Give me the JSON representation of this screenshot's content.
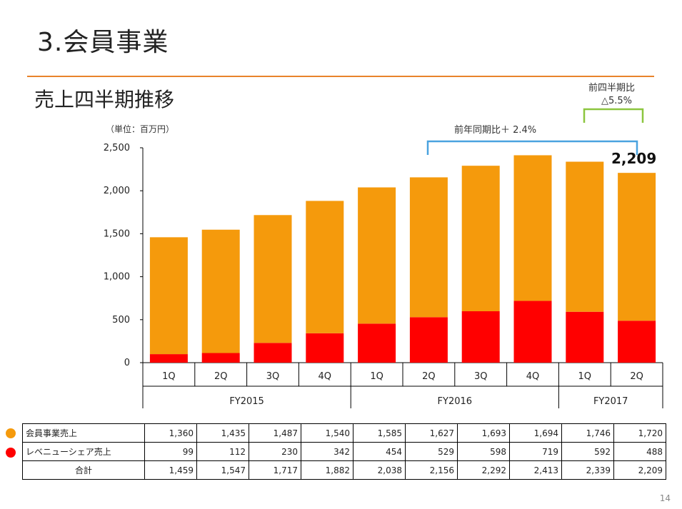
{
  "title": "3.会員事業",
  "subtitle": "売上四半期推移",
  "unit": "（単位：百万円）",
  "notes": {
    "yoy": "前年同期比＋ 2.4%",
    "qoq_line1": "前四半期比",
    "qoq_line2": "△5.5%"
  },
  "total_label": "2,209",
  "page_number": "14",
  "colors": {
    "member": "#f59a0c",
    "revenue_share": "#ff0000",
    "yoy_bracket": "#4aa3df",
    "qoq_bracket": "#8cc63f",
    "rule": "#e8832b"
  },
  "chart_data": {
    "type": "bar",
    "stacked": true,
    "categories": [
      "1Q",
      "2Q",
      "3Q",
      "4Q",
      "1Q",
      "2Q",
      "3Q",
      "4Q",
      "1Q",
      "2Q"
    ],
    "groups": [
      {
        "name": "FY2015",
        "span": 4
      },
      {
        "name": "FY2016",
        "span": 4
      },
      {
        "name": "FY2017",
        "span": 2
      }
    ],
    "series": [
      {
        "name": "レベニューシェア売上",
        "values": [
          99,
          112,
          230,
          342,
          454,
          529,
          598,
          719,
          592,
          488
        ]
      },
      {
        "name": "会員事業売上",
        "values": [
          1360,
          1435,
          1487,
          1540,
          1585,
          1627,
          1693,
          1694,
          1746,
          1720
        ]
      }
    ],
    "ylim": [
      0,
      2500
    ],
    "yticks": [
      "0",
      "500",
      "1,000",
      "1,500",
      "2,000",
      "2,500"
    ],
    "grid": false
  },
  "table": {
    "rows": [
      {
        "label": "会員事業売上",
        "values": [
          "1,360",
          "1,435",
          "1,487",
          "1,540",
          "1,585",
          "1,627",
          "1,693",
          "1,694",
          "1,746",
          "1,720"
        ]
      },
      {
        "label": "レベニューシェア売上",
        "values": [
          "99",
          "112",
          "230",
          "342",
          "454",
          "529",
          "598",
          "719",
          "592",
          "488"
        ]
      },
      {
        "label": "合計",
        "values": [
          "1,459",
          "1,547",
          "1,717",
          "1,882",
          "2,038",
          "2,156",
          "2,292",
          "2,413",
          "2,339",
          "2,209"
        ]
      }
    ]
  }
}
